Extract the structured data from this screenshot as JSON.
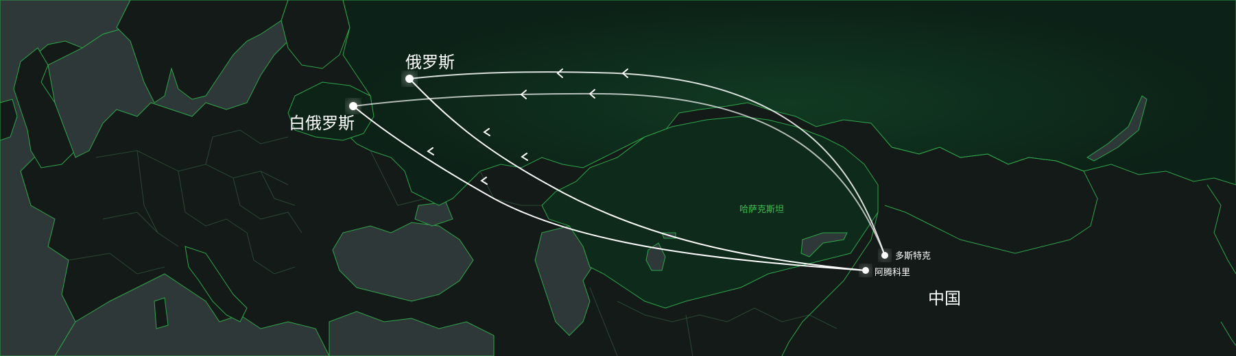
{
  "map": {
    "places": {
      "russia": "俄罗斯",
      "belarus": "白俄罗斯",
      "kazakhstan": "哈萨克斯坦",
      "dostyk": "多斯特克",
      "alashankou": "阿腾科里",
      "china": "中国"
    },
    "routes": [
      {
        "from": "dostyk",
        "to": "russia"
      },
      {
        "from": "dostyk",
        "to": "belarus"
      },
      {
        "from": "alashankou",
        "to": "russia"
      },
      {
        "from": "alashankou",
        "to": "belarus"
      }
    ],
    "colors": {
      "ocean": "#2f3838",
      "land": "#131a18",
      "highlight_land": "#0d2318",
      "border": "#2ea84a",
      "route": "#ffffff",
      "region_label": "#3fbf55"
    },
    "icons": [
      "route-arrow-icon",
      "city-dot-icon"
    ]
  }
}
